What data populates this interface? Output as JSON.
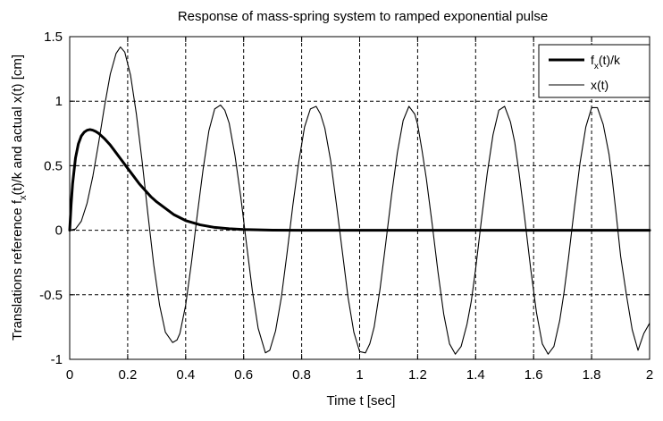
{
  "chart_data": {
    "type": "line",
    "title": "Response of mass-spring system to ramped exponential pulse",
    "xlabel": "Time t [sec]",
    "ylabel_parts": [
      "Translations reference f",
      "x",
      "(t)/k and actual x(t) [cm]"
    ],
    "xlim": [
      0,
      2
    ],
    "ylim": [
      -1,
      1.5
    ],
    "xticks": [
      0,
      0.2,
      0.4,
      0.6,
      0.8,
      1,
      1.2,
      1.4,
      1.6,
      1.8,
      2
    ],
    "xtick_labels": [
      "0",
      "0.2",
      "0.4",
      "0.6",
      "0.8",
      "1",
      "1.2",
      "1.4",
      "1.6",
      "1.8",
      "2"
    ],
    "yticks": [
      -1,
      -0.5,
      0,
      0.5,
      1,
      1.5
    ],
    "ytick_labels": [
      "-1",
      "-0.5",
      "0",
      "0.5",
      "1",
      "1.5"
    ],
    "grid": true,
    "legend_position": "top-right",
    "series": [
      {
        "name_parts": [
          "f",
          "x",
          "(t)/k"
        ],
        "color": "#000000",
        "style": "thick",
        "x": [
          0,
          0.005,
          0.01,
          0.02,
          0.03,
          0.04,
          0.05,
          0.06,
          0.07,
          0.08,
          0.09,
          0.1,
          0.12,
          0.14,
          0.16,
          0.18,
          0.2,
          0.22,
          0.24,
          0.26,
          0.28,
          0.3,
          0.33,
          0.36,
          0.4,
          0.45,
          0.5,
          0.55,
          0.6,
          0.65,
          0.7,
          0.8,
          1.0,
          1.2,
          1.4,
          1.6,
          1.8,
          2.0
        ],
        "y": [
          0,
          0.2,
          0.36,
          0.56,
          0.67,
          0.73,
          0.76,
          0.775,
          0.78,
          0.775,
          0.765,
          0.75,
          0.71,
          0.66,
          0.6,
          0.54,
          0.48,
          0.42,
          0.36,
          0.31,
          0.26,
          0.22,
          0.17,
          0.12,
          0.075,
          0.042,
          0.022,
          0.012,
          0.006,
          0.003,
          0.001,
          0,
          0,
          0,
          0,
          0,
          0,
          0
        ]
      },
      {
        "name": "x(t)",
        "color": "#000000",
        "style": "thin",
        "x": [
          0,
          0.02,
          0.04,
          0.06,
          0.08,
          0.1,
          0.12,
          0.14,
          0.16,
          0.175,
          0.19,
          0.21,
          0.23,
          0.25,
          0.27,
          0.29,
          0.31,
          0.33,
          0.355,
          0.37,
          0.38,
          0.4,
          0.42,
          0.44,
          0.46,
          0.48,
          0.5,
          0.52,
          0.535,
          0.55,
          0.57,
          0.59,
          0.61,
          0.63,
          0.65,
          0.675,
          0.69,
          0.71,
          0.73,
          0.75,
          0.77,
          0.79,
          0.81,
          0.83,
          0.85,
          0.865,
          0.88,
          0.9,
          0.92,
          0.94,
          0.96,
          0.98,
          1.0,
          1.02,
          1.035,
          1.05,
          1.07,
          1.09,
          1.11,
          1.13,
          1.15,
          1.17,
          1.19,
          1.2,
          1.215,
          1.23,
          1.25,
          1.27,
          1.29,
          1.31,
          1.33,
          1.35,
          1.37,
          1.385,
          1.4,
          1.42,
          1.44,
          1.46,
          1.48,
          1.5,
          1.52,
          1.535,
          1.55,
          1.57,
          1.59,
          1.61,
          1.63,
          1.65,
          1.67,
          1.69,
          1.705,
          1.72,
          1.74,
          1.76,
          1.78,
          1.8,
          1.82,
          1.84,
          1.86,
          1.87,
          1.885,
          1.9,
          1.92,
          1.94,
          1.96,
          1.98,
          2.0
        ],
        "y": [
          0,
          0.01,
          0.07,
          0.21,
          0.42,
          0.68,
          0.96,
          1.21,
          1.37,
          1.42,
          1.38,
          1.2,
          0.9,
          0.53,
          0.12,
          -0.27,
          -0.58,
          -0.79,
          -0.87,
          -0.85,
          -0.8,
          -0.58,
          -0.25,
          0.12,
          0.47,
          0.77,
          0.94,
          0.97,
          0.93,
          0.83,
          0.58,
          0.26,
          -0.11,
          -0.47,
          -0.76,
          -0.95,
          -0.93,
          -0.78,
          -0.52,
          -0.17,
          0.2,
          0.53,
          0.8,
          0.94,
          0.96,
          0.9,
          0.79,
          0.54,
          0.2,
          -0.16,
          -0.52,
          -0.79,
          -0.94,
          -0.95,
          -0.88,
          -0.75,
          -0.46,
          -0.1,
          0.27,
          0.6,
          0.85,
          0.96,
          0.9,
          0.82,
          0.62,
          0.4,
          0.05,
          -0.32,
          -0.65,
          -0.88,
          -0.96,
          -0.9,
          -0.73,
          -0.55,
          -0.3,
          0.08,
          0.44,
          0.74,
          0.93,
          0.96,
          0.84,
          0.68,
          0.44,
          0.08,
          -0.3,
          -0.64,
          -0.88,
          -0.96,
          -0.9,
          -0.7,
          -0.48,
          -0.22,
          0.16,
          0.52,
          0.8,
          0.95,
          0.95,
          0.82,
          0.59,
          0.42,
          0.12,
          -0.2,
          -0.5,
          -0.77,
          -0.93,
          -0.8,
          -0.72
        ]
      }
    ]
  }
}
